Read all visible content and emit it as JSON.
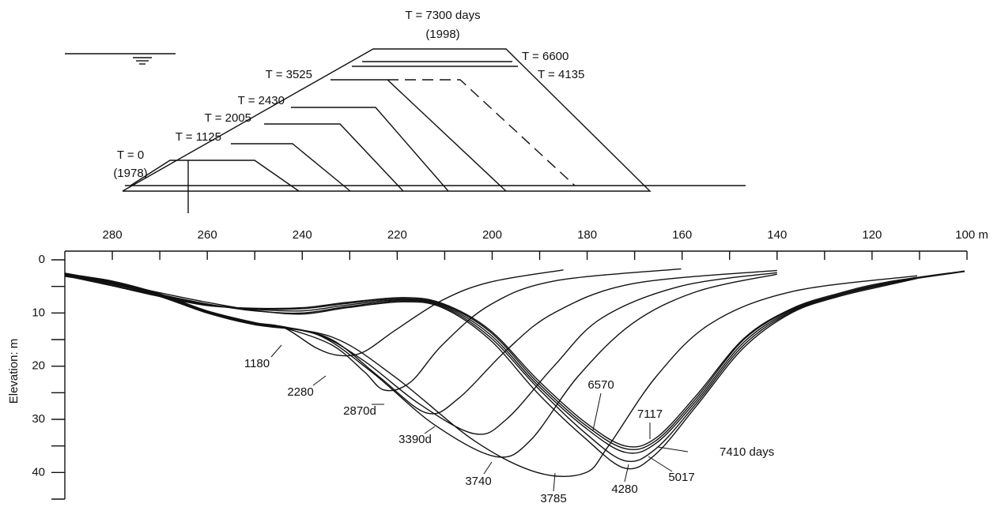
{
  "diagram": {
    "labels": [
      "T = 7300 days",
      "(1998)",
      "T = 6600",
      "T = 4135",
      "T = 3525",
      "T = 2430",
      "T = 2005",
      "T = 1125",
      "T = 0",
      "(1978)"
    ]
  },
  "chart_data": {
    "type": "line",
    "ylabel": "Elevation: m",
    "xlim": [
      290,
      100
    ],
    "ylim": [
      45,
      0
    ],
    "xticks": [
      280,
      260,
      240,
      220,
      200,
      180,
      160,
      140,
      120,
      {
        "value": 100,
        "label": "100 m"
      }
    ],
    "xminorticks": [
      270,
      250,
      230,
      210,
      190,
      170,
      150,
      130,
      110
    ],
    "yticks": [
      0,
      10,
      20,
      30,
      40
    ],
    "yminorticks": [
      5,
      15,
      25,
      35,
      45
    ],
    "series": [
      {
        "name": "1180",
        "color": "#111111",
        "x": [
          290,
          280,
          270,
          260,
          250,
          243.8,
          237,
          232,
          227,
          220.5,
          210.5,
          200.5,
          185
        ],
        "values": [
          2.6,
          4,
          6.4,
          9.6,
          11.8,
          12.8,
          16.6,
          18,
          17.3,
          13.3,
          7.6,
          4.2,
          1.9
        ]
      },
      {
        "name": "2280",
        "color": "#111111",
        "x": [
          290,
          280,
          270,
          260,
          250,
          243.8,
          233.8,
          227,
          222.7,
          217.2,
          210.5,
          200.5,
          187,
          160.2
        ],
        "values": [
          2.7,
          4.1,
          6.5,
          9.7,
          11.9,
          12.8,
          16,
          21,
          24.5,
          23,
          16,
          8.5,
          4,
          1.7
        ]
      },
      {
        "name": "2870d",
        "color": "#111111",
        "x": [
          290,
          280,
          270,
          260,
          250,
          243.8,
          233.8,
          223.8,
          213.8,
          207,
          197,
          187,
          170.5,
          140
        ],
        "values": [
          2.8,
          4.2,
          6.6,
          9.8,
          12,
          12.6,
          15,
          22,
          28.8,
          26,
          17,
          10,
          4.5,
          2
        ]
      },
      {
        "name": "3390d",
        "color": "#111111",
        "x": [
          290,
          280,
          270,
          260,
          250,
          237,
          227,
          215.5,
          203.8,
          197,
          187,
          177,
          160.5,
          140
        ],
        "values": [
          2.9,
          4.3,
          6.7,
          9.9,
          12,
          14,
          19,
          27,
          32.7,
          30,
          20,
          11,
          5,
          2.4
        ]
      },
      {
        "name": "3740",
        "color": "#111111",
        "x": [
          290,
          280,
          270,
          260,
          250,
          237,
          225.5,
          212.2,
          199.3,
          192,
          182,
          170.5,
          157,
          140
        ],
        "values": [
          3,
          4.4,
          6.8,
          10,
          12.1,
          14,
          21,
          31,
          37,
          34,
          22,
          12,
          6,
          2.7
        ]
      },
      {
        "name": "3785",
        "color": "#111111",
        "x": [
          290,
          280,
          270,
          260,
          250,
          233.8,
          220.5,
          203.8,
          190.5,
          180.5,
          175.5,
          165.5,
          154,
          137,
          110.5
        ],
        "values": [
          3.1,
          4.5,
          6.9,
          10,
          12.2,
          14.5,
          22,
          34,
          40,
          40.1,
          35,
          22,
          12,
          6,
          3
        ]
      },
      {
        "name": "4280",
        "color": "#111111",
        "x": [
          290,
          280,
          270,
          260,
          250,
          240,
          230.5,
          218.8,
          210.5,
          200.5,
          190.5,
          180.5,
          172,
          165.5,
          157,
          147,
          137,
          127,
          117,
          110.5
        ],
        "values": [
          2.5,
          4.2,
          6.2,
          8,
          9.5,
          10.2,
          9,
          7.9,
          9,
          15,
          25,
          33.5,
          39.2,
          36.5,
          27.5,
          16.5,
          10,
          6.9,
          4.8,
          3.5
        ]
      },
      {
        "name": "5017",
        "color": "#111111",
        "x": [
          290,
          280,
          270,
          260,
          250,
          240,
          230.5,
          218.8,
          210.5,
          200.5,
          190.5,
          180.5,
          172,
          165.5,
          157,
          147,
          137,
          127,
          117,
          110.5
        ],
        "values": [
          2.7,
          4.5,
          6.5,
          8.3,
          9.6,
          10,
          8.8,
          7.7,
          8.8,
          14.5,
          24,
          32.5,
          37.8,
          35.5,
          27,
          16,
          9.8,
          6.7,
          4.6,
          3.4
        ]
      },
      {
        "name": "6570",
        "color": "#111111",
        "x": [
          290,
          280,
          270,
          260,
          250,
          240,
          230.5,
          218.8,
          210.5,
          200.5,
          190.5,
          180.5,
          172,
          165.5,
          157,
          147,
          137,
          127,
          117,
          110.5
        ],
        "values": [
          2.8,
          4.6,
          6.6,
          8.4,
          9.3,
          9.6,
          8.5,
          7.5,
          8.6,
          14,
          23.5,
          31.5,
          36.2,
          34.5,
          26.5,
          15.5,
          9.6,
          6.6,
          4.5,
          3.3
        ]
      },
      {
        "name": "7117",
        "color": "#111111",
        "x": [
          290,
          280,
          270,
          260,
          250,
          240,
          230.5,
          218.8,
          210.5,
          200.5,
          190.5,
          180.5,
          172,
          165.5,
          157,
          147,
          137,
          127,
          117,
          100.5
        ],
        "values": [
          2.9,
          4.8,
          6.8,
          8.5,
          9.2,
          9.2,
          8.2,
          7.3,
          8.4,
          13.5,
          23,
          31,
          35.5,
          34,
          26,
          15,
          9.4,
          6.5,
          4.4,
          2.2
        ]
      },
      {
        "name": "7410 days",
        "color": "#111111",
        "x": [
          290,
          280,
          270,
          260,
          250,
          240,
          230.5,
          218.8,
          210.5,
          200.5,
          190.5,
          180.5,
          172,
          165.5,
          157,
          147,
          137,
          127,
          117,
          100.5
        ],
        "values": [
          3,
          4.9,
          6.9,
          8.6,
          9.1,
          9,
          8,
          7.1,
          8.2,
          13.2,
          22.5,
          30.5,
          35,
          33.5,
          25.5,
          14.8,
          9.2,
          6.3,
          4.2,
          2.1
        ]
      }
    ]
  }
}
